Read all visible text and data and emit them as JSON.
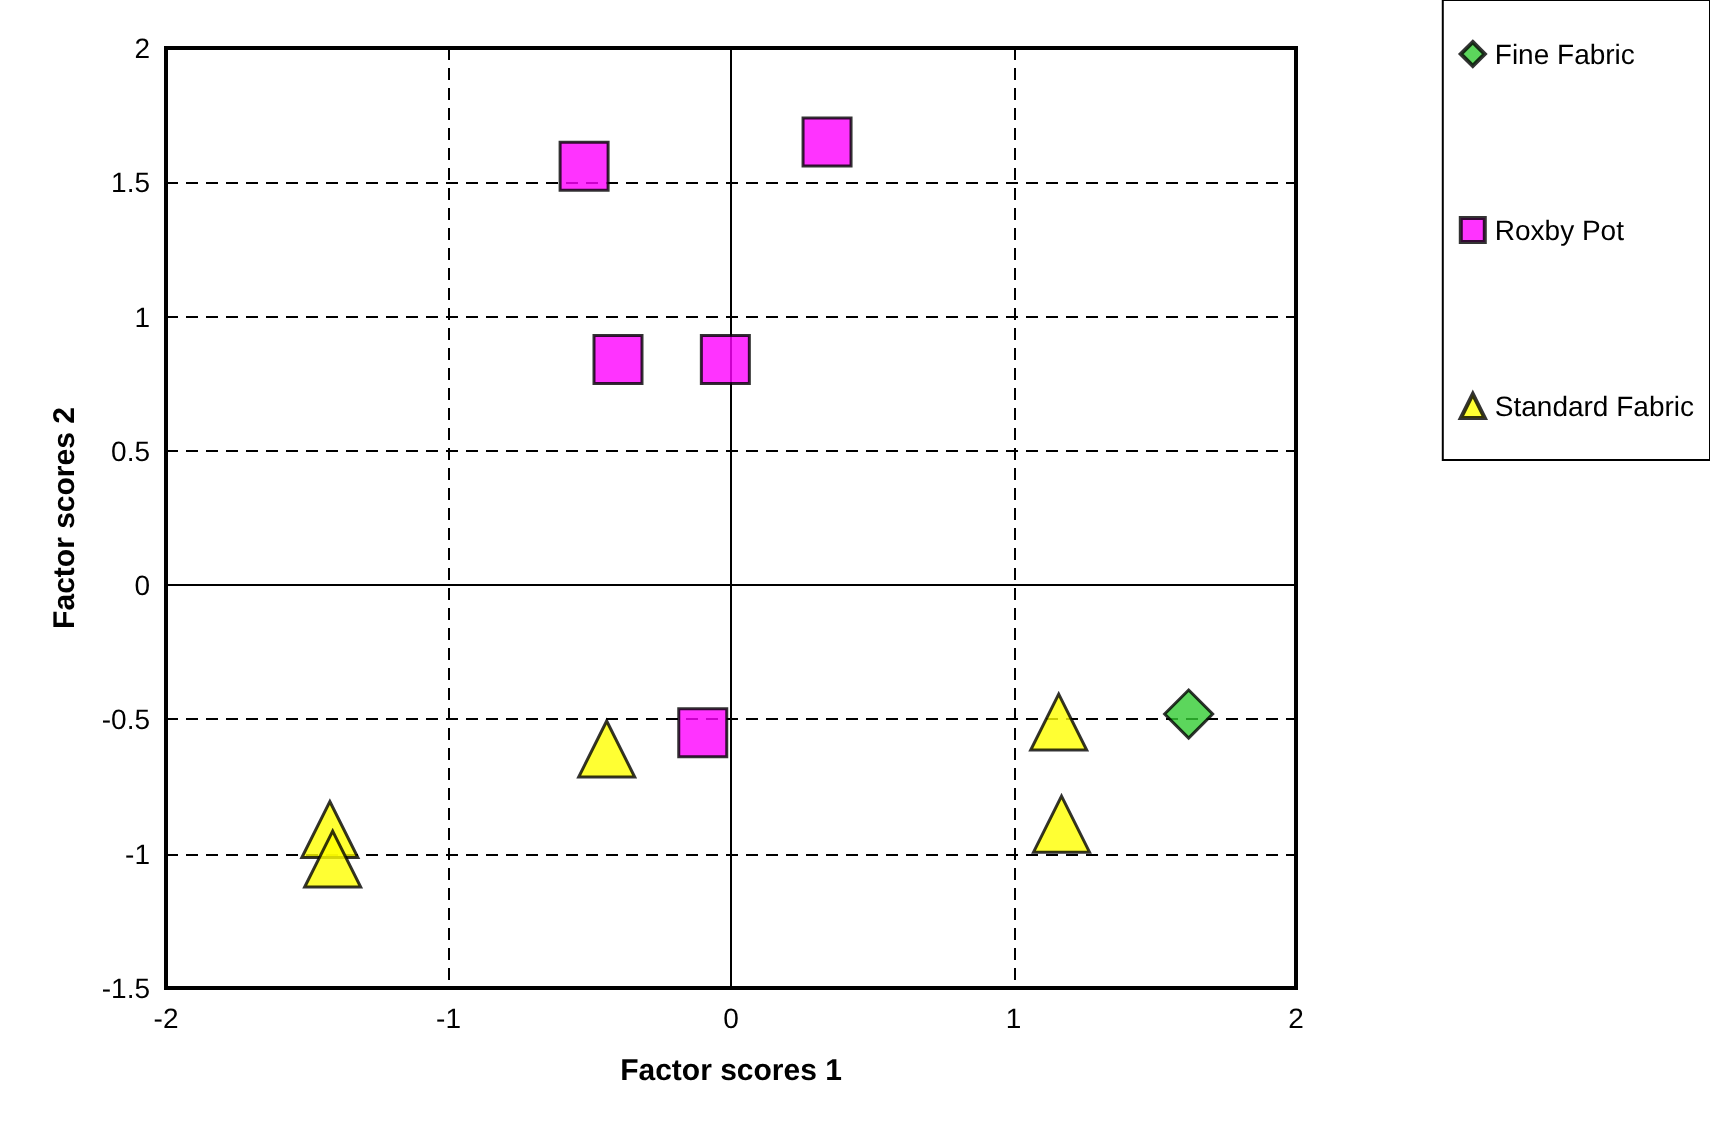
{
  "chart_data": {
    "type": "scatter",
    "xlabel": "Factor scores 1",
    "ylabel": "Factor scores 2",
    "xlim": [
      -2,
      2
    ],
    "xticks": [
      -2,
      -1,
      0,
      1,
      2
    ],
    "ylim": [
      -1.5,
      2
    ],
    "yticks": [
      -1.5,
      -1,
      -0.5,
      0,
      0.5,
      1,
      1.5,
      2
    ],
    "grid": true,
    "legend": "top right",
    "series": [
      {
        "name": "Fine Fabric",
        "color": "#33cc33",
        "marker": "diamond",
        "x": [
          1.62
        ],
        "values": [
          -0.48
        ]
      },
      {
        "name": "Roxby Pot",
        "color": "#ff00ff",
        "marker": "square",
        "x": [
          -0.52,
          0.34,
          -0.4,
          -0.02,
          -0.1
        ],
        "values": [
          1.56,
          1.65,
          0.84,
          0.84,
          -0.55
        ]
      },
      {
        "name": "Standard Fabric",
        "color": "#ffff00",
        "marker": "triangle",
        "x": [
          -1.42,
          -1.41,
          -0.44,
          1.16,
          1.17
        ],
        "values": [
          -0.91,
          -1.02,
          -0.61,
          -0.51,
          -0.89
        ]
      }
    ]
  }
}
